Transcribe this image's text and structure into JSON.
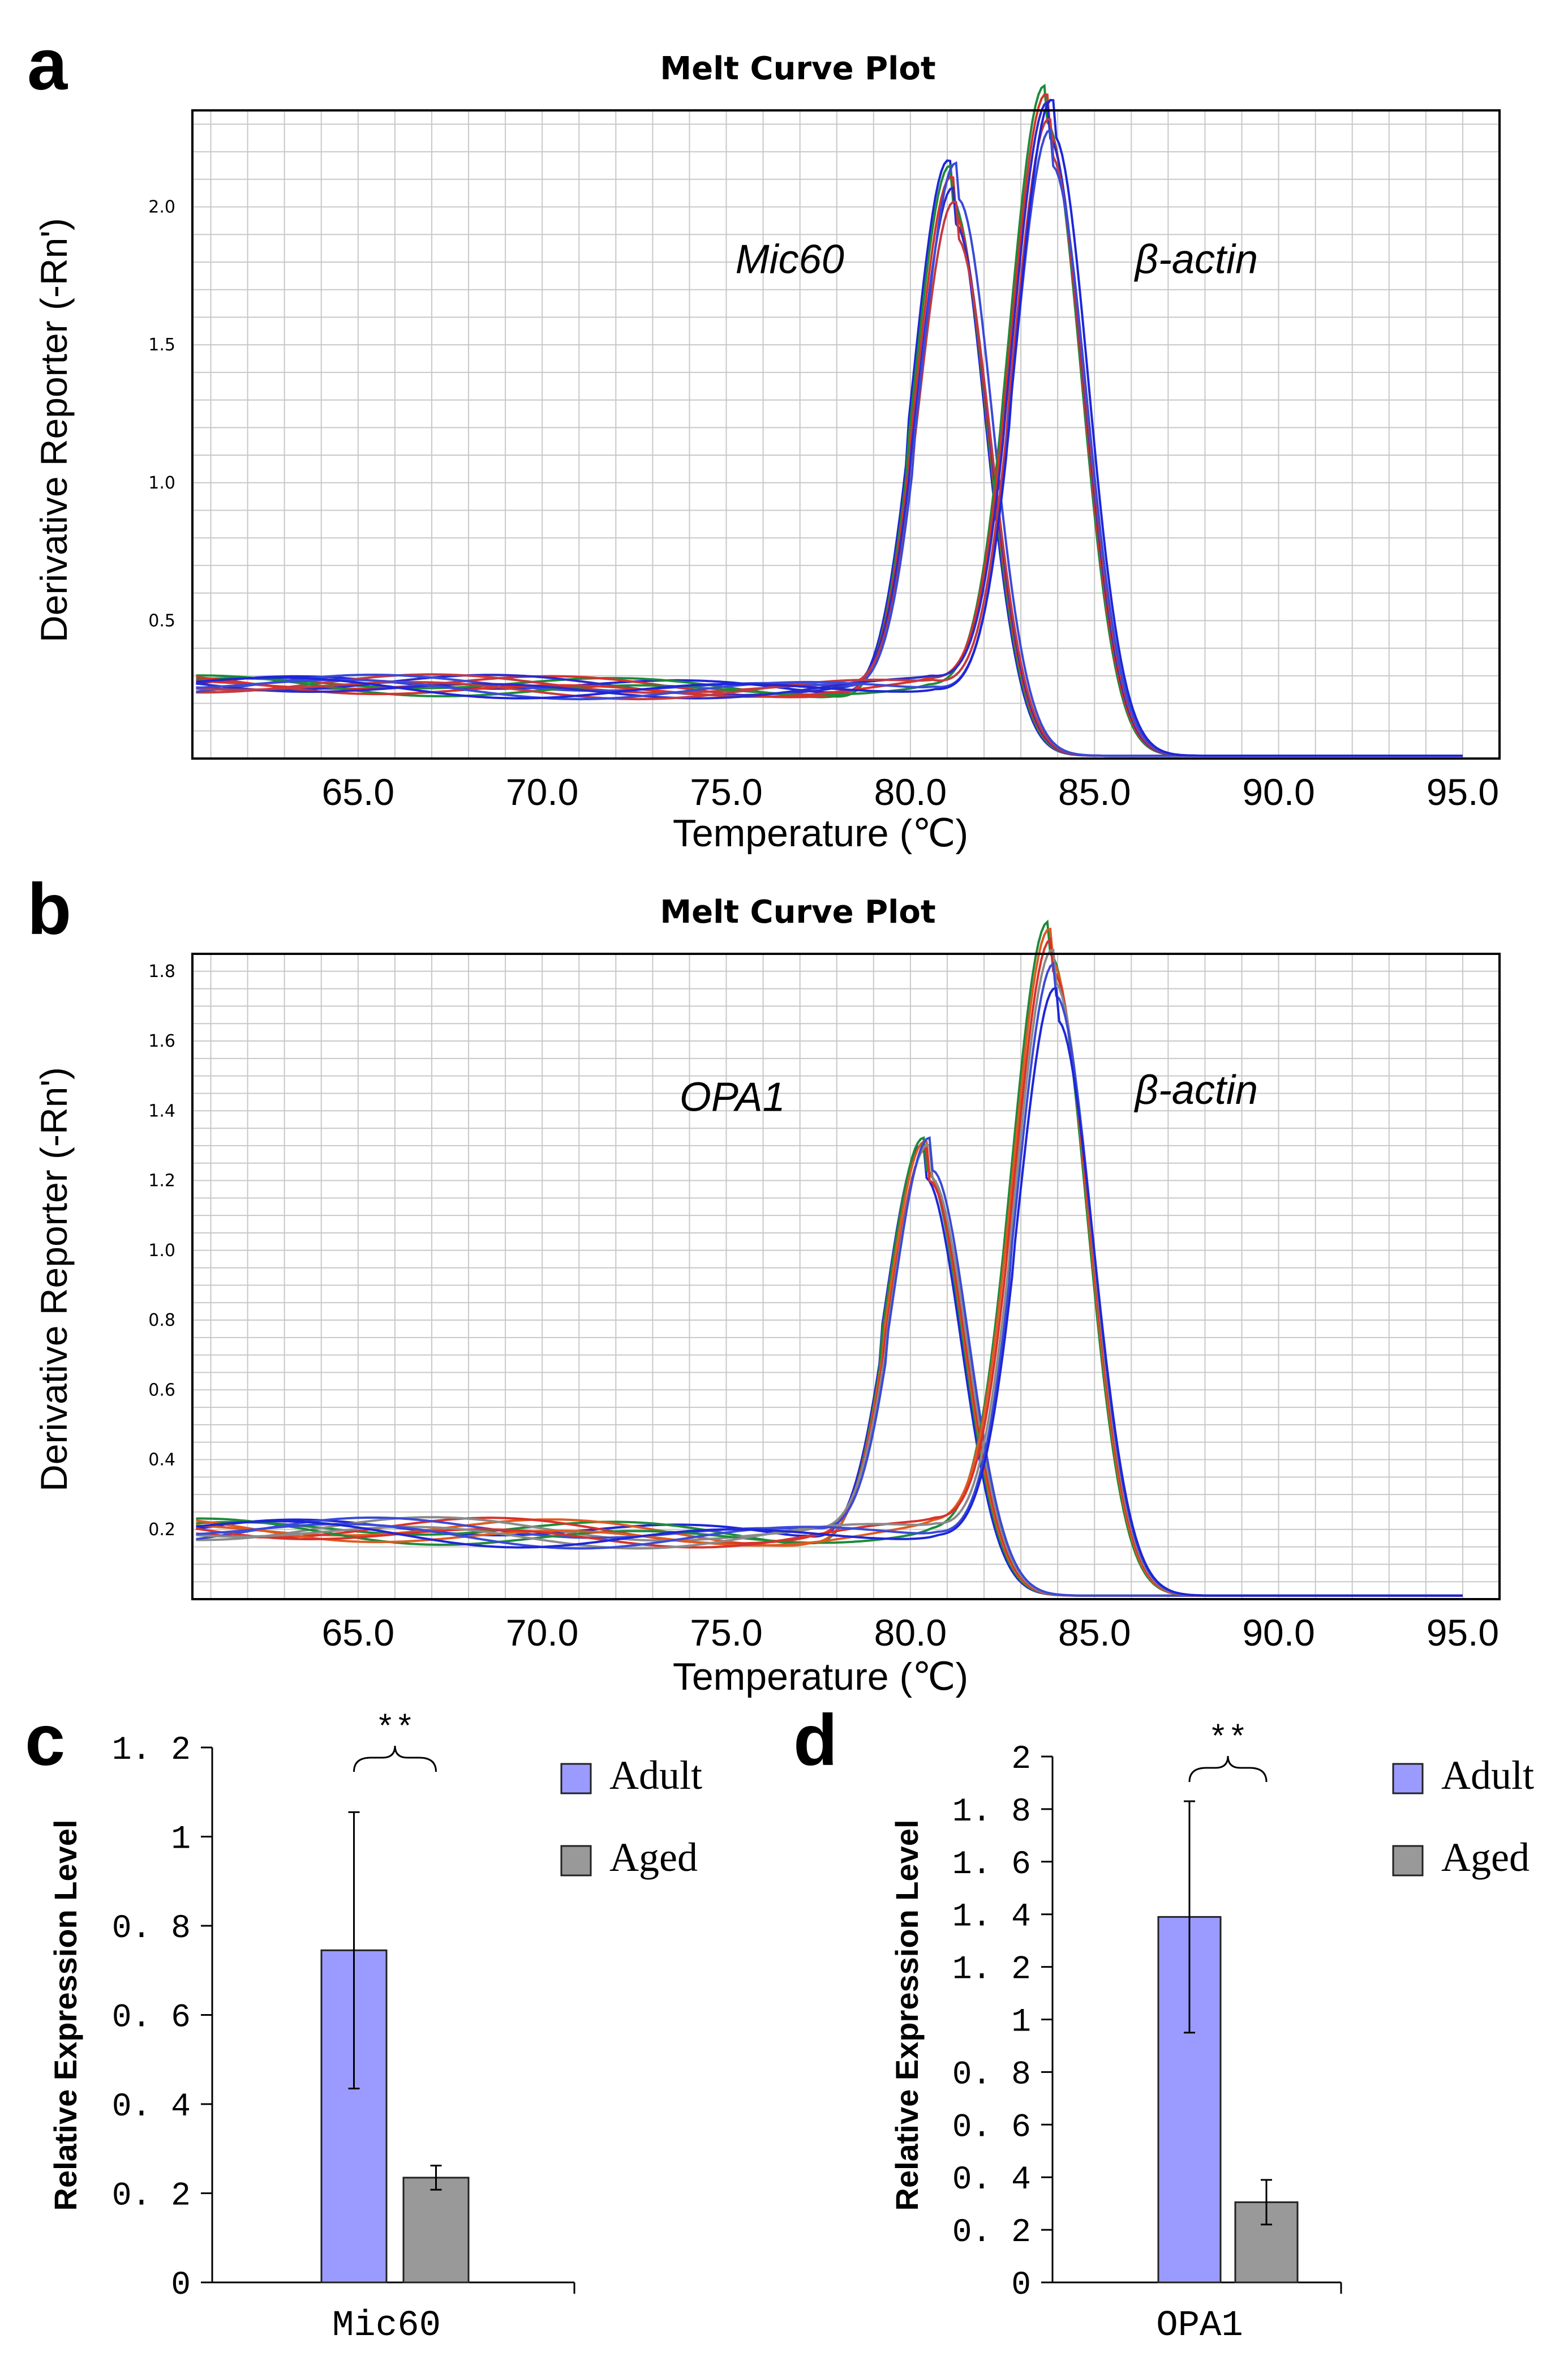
{
  "panels": {
    "a": "a",
    "b": "b",
    "c": "c",
    "d": "d"
  },
  "chart_data": [
    {
      "id": "a",
      "type": "line",
      "title": "Melt Curve Plot",
      "xlabel": "Temperature (℃)",
      "ylabel": "Derivative Reporter (-Rn')",
      "xlim": [
        60.5,
        96.0
      ],
      "ylim": [
        0.0,
        2.35
      ],
      "xticks": [
        65.0,
        70.0,
        75.0,
        80.0,
        85.0,
        90.0,
        95.0
      ],
      "xtick_labels": [
        "65.0",
        "70.0",
        "75.0",
        "80.0",
        "85.0",
        "90.0",
        "95.0"
      ],
      "yticks": [
        0.5,
        1.0,
        1.5,
        2.0
      ],
      "ytick_labels": [
        "0.5",
        "1.0",
        "1.5",
        "2.0"
      ],
      "grid": true,
      "annotations": [
        {
          "text": "Mic60",
          "x": 78.2,
          "y": 1.76
        },
        {
          "text": "β-actin",
          "x": 86.1,
          "y": 1.76
        }
      ],
      "peak_groups": [
        {
          "label": "Mic60",
          "center": 81.2,
          "width": 0.95,
          "peaks": [
            2.03,
            2.01,
            1.97,
            1.93,
            1.88,
            2.02
          ]
        },
        {
          "label": "β-actin",
          "center": 83.8,
          "width": 0.95,
          "peaks": [
            2.3,
            2.27,
            2.24,
            2.18,
            2.14,
            2.25
          ]
        }
      ],
      "baseline": 0.26,
      "curve_colors": [
        "#1e26d8",
        "#1d8a3a",
        "#d8322a",
        "#2b2bc9",
        "#c43a40",
        "#3a4ad8"
      ]
    },
    {
      "id": "b",
      "type": "line",
      "title": "Melt Curve Plot",
      "xlabel": "Temperature (℃)",
      "ylabel": "Derivative Reporter (-Rn')",
      "xlim": [
        60.5,
        96.0
      ],
      "ylim": [
        0.0,
        1.85
      ],
      "xticks": [
        65.0,
        70.0,
        75.0,
        80.0,
        85.0,
        90.0,
        95.0
      ],
      "xtick_labels": [
        "65.0",
        "70.0",
        "75.0",
        "80.0",
        "85.0",
        "90.0",
        "95.0"
      ],
      "yticks": [
        0.2,
        0.4,
        0.6,
        0.8,
        1.0,
        1.2,
        1.4,
        1.6,
        1.8
      ],
      "ytick_labels": [
        "0.2",
        "0.4",
        "0.6",
        "0.8",
        "1.0",
        "1.2",
        "1.4",
        "1.6",
        "1.8"
      ],
      "grid": true,
      "annotations": [
        {
          "text": "OPA1",
          "x": 76.6,
          "y": 1.4
        },
        {
          "text": "β-actin",
          "x": 86.1,
          "y": 1.42
        }
      ],
      "peak_groups": [
        {
          "label": "OPA1",
          "center": 80.5,
          "width": 1.0,
          "peaks": [
            1.2,
            1.22,
            1.21,
            1.19,
            1.2,
            1.22
          ]
        },
        {
          "label": "β-actin",
          "center": 83.9,
          "width": 1.0,
          "peaks": [
            1.84,
            1.82,
            1.79,
            1.76,
            1.72,
            1.65
          ]
        }
      ],
      "baseline": 0.19,
      "curve_colors": [
        "#1e26d8",
        "#1d8a3a",
        "#e05a1e",
        "#d8322a",
        "#8a8a8a",
        "#3a4ad8"
      ]
    },
    {
      "id": "c",
      "type": "bar",
      "categories": [
        "Mic60"
      ],
      "ylabel": "Relative Expression Level",
      "ylim": [
        0,
        1.2
      ],
      "yticks": [
        0,
        0.2,
        0.4,
        0.6,
        0.8,
        1,
        1.2
      ],
      "ytick_labels": [
        "0",
        "0. 2",
        "0. 4",
        "0. 6",
        "0. 8",
        "1",
        "1. 2"
      ],
      "series": [
        {
          "name": "Adult",
          "values": [
            0.745
          ],
          "error": [
            0.31
          ],
          "color": "#9b9bff"
        },
        {
          "name": "Aged",
          "values": [
            0.235
          ],
          "error": [
            0.027
          ],
          "color": "#999999"
        }
      ],
      "significance": "**",
      "legend": "right"
    },
    {
      "id": "d",
      "type": "bar",
      "categories": [
        "OPA1"
      ],
      "ylabel": "Relative Expression Level",
      "ylim": [
        0,
        2
      ],
      "yticks": [
        0,
        0.2,
        0.4,
        0.6,
        0.8,
        1,
        1.2,
        1.4,
        1.6,
        1.8,
        2
      ],
      "ytick_labels": [
        "0",
        "0. 2",
        "0. 4",
        "0. 6",
        "0. 8",
        "1",
        "1. 2",
        "1. 4",
        "1. 6",
        "1. 8",
        "2"
      ],
      "series": [
        {
          "name": "Adult",
          "values": [
            1.39
          ],
          "error": [
            0.44
          ],
          "color": "#9b9bff"
        },
        {
          "name": "Aged",
          "values": [
            0.305
          ],
          "error": [
            0.085
          ],
          "color": "#999999"
        }
      ],
      "significance": "**",
      "legend": "right"
    }
  ]
}
